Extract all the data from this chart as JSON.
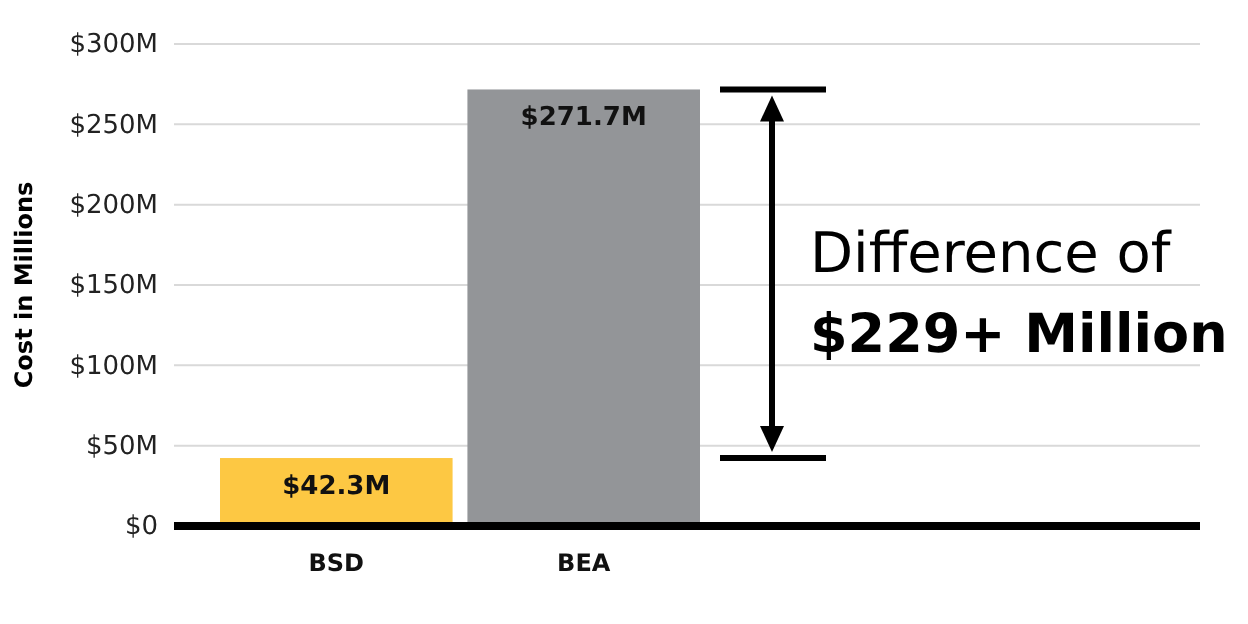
{
  "chart_data": {
    "type": "bar",
    "ylabel": "Cost in Millions",
    "categories": [
      "BSD",
      "BEA"
    ],
    "values": [
      42.3,
      271.7
    ],
    "colors": [
      "#fdc843",
      "#939598"
    ],
    "value_labels": [
      "$42.3M",
      "$271.7M"
    ],
    "ylim": [
      0,
      300
    ],
    "yticks": [
      {
        "value": 0,
        "label": "$0"
      },
      {
        "value": 50,
        "label": "$50M"
      },
      {
        "value": 100,
        "label": "$100M"
      },
      {
        "value": 150,
        "label": "$150M"
      },
      {
        "value": 200,
        "label": "$200M"
      },
      {
        "value": 250,
        "label": "$250M"
      },
      {
        "value": 300,
        "label": "$300M"
      }
    ],
    "grid": "y",
    "annotations": [
      "Difference of",
      "$229+ Million"
    ]
  }
}
